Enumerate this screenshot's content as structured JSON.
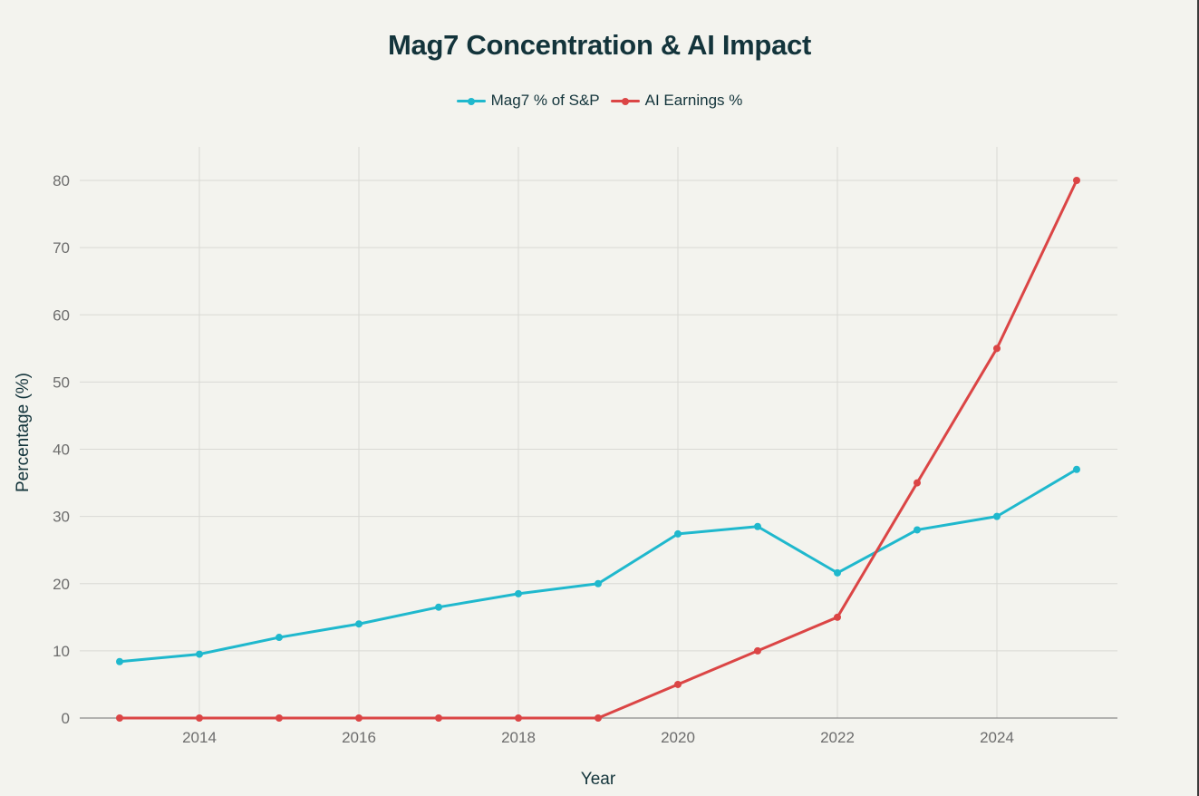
{
  "chart_data": {
    "type": "line",
    "title": "Mag7 Concentration & AI Impact",
    "xlabel": "Year",
    "ylabel": "Percentage (%)",
    "x": [
      2013,
      2014,
      2015,
      2016,
      2017,
      2018,
      2019,
      2020,
      2021,
      2022,
      2023,
      2024,
      2025
    ],
    "xticks": [
      2014,
      2016,
      2018,
      2020,
      2022,
      2024
    ],
    "xtick_labels": [
      "2014",
      "2016",
      "2018",
      "2020",
      "2022",
      "2024"
    ],
    "yticks": [
      0,
      10,
      20,
      30,
      40,
      50,
      60,
      70,
      80
    ],
    "ytick_labels": [
      "0",
      "10",
      "20",
      "30",
      "40",
      "50",
      "60",
      "70",
      "80"
    ],
    "xlim": [
      2012.5,
      2025.5
    ],
    "ylim": [
      0,
      84.9
    ],
    "grid": true,
    "legend_position": "top-center",
    "series": [
      {
        "name": "Mag7 % of S&P",
        "color": "#1fb8cd",
        "values": [
          8.4,
          9.5,
          12,
          14,
          16.5,
          18.5,
          20,
          27.4,
          28.5,
          21.6,
          28,
          30,
          37
        ]
      },
      {
        "name": "AI Earnings %",
        "color": "#db4545",
        "values": [
          0,
          0,
          0,
          0,
          0,
          0,
          0,
          5,
          10,
          15,
          35,
          55,
          80
        ]
      }
    ]
  }
}
